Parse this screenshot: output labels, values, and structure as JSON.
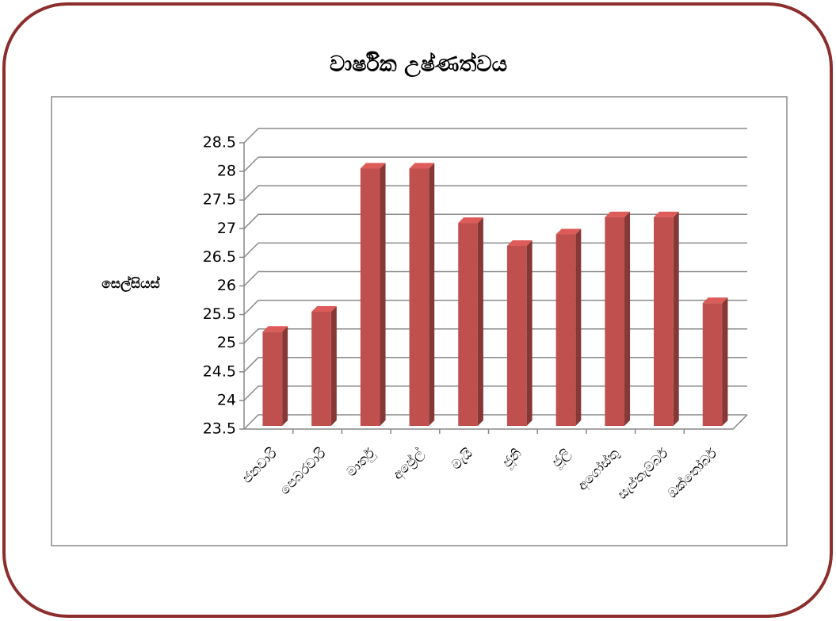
{
  "chart_data": {
    "type": "bar3d",
    "title": "වාර්ෂික උෂ්ණත්වය",
    "y_label": "සෙල්සියස්",
    "categories": [
      "ජනවාරි",
      "පෙබරවාරි",
      "මාර්තු",
      "අප්‍රේල්",
      "මැයි",
      "ජූනි",
      "ජූලි",
      "අගෝස්තු",
      "සැප්තැම්බර්",
      "ඔක්තෝබර්"
    ],
    "values": [
      25.2,
      25.55,
      28.05,
      28.05,
      27.1,
      26.7,
      26.9,
      27.2,
      27.2,
      25.7
    ],
    "color": "#c0504d",
    "ylim": [
      23.5,
      28.5
    ],
    "yticks": [
      23.5,
      24,
      24.5,
      25,
      25.5,
      26,
      26.5,
      27,
      27.5,
      28,
      28.5
    ],
    "grid": true
  }
}
